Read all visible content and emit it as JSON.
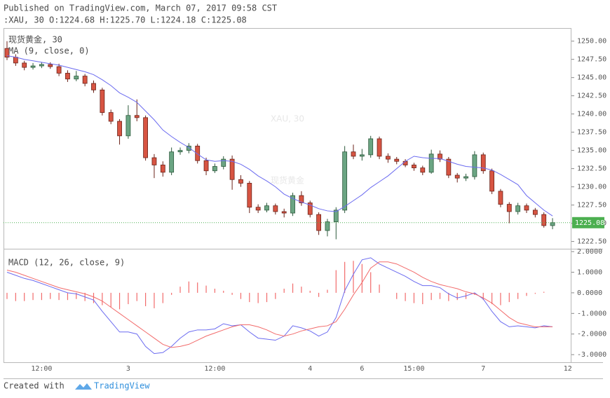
{
  "chart_data": [
    {
      "type": "candlestick",
      "title": "Published on TradingView.com, March 07, 2017 09:58 CST",
      "subtitle": ":XAU, 30 O:1224.68 H:1225.70 L:1224.18 C:1225.08",
      "symbol_label": "现货黄金, 30",
      "watermark": "XAU, 30",
      "watermark_subtitle": "现货黄金",
      "categories": [
        null,
        null,
        null,
        null,
        "12:00",
        null,
        null,
        null,
        null,
        null,
        null,
        null,
        null,
        null,
        "3",
        null,
        null,
        null,
        null,
        null,
        null,
        null,
        null,
        null,
        "12:00",
        null,
        null,
        null,
        null,
        null,
        null,
        null,
        null,
        null,
        null,
        "4",
        null,
        null,
        null,
        null,
        null,
        "6",
        null,
        null,
        null,
        null,
        null,
        "15:00",
        null,
        null,
        null,
        null,
        null,
        null,
        null,
        "7",
        null,
        null,
        null,
        null,
        null,
        null,
        null,
        null,
        null,
        "12:"
      ],
      "open": [
        1249.0,
        1247.8,
        1247.0,
        1246.4,
        1246.6,
        1246.8,
        1246.5,
        1245.6,
        1244.8,
        1245.2,
        1244.2,
        1243.3,
        1240.2,
        1239.0,
        1237.0,
        1239.8,
        1239.5,
        1234.0,
        1233.0,
        1232.0,
        1234.8,
        1235.0,
        1235.6,
        1233.6,
        1232.2,
        1232.8,
        1233.8,
        1231.0,
        1230.5,
        1227.2,
        1226.8,
        1227.4,
        1226.6,
        1226.4,
        1228.8,
        1227.8,
        1226.2,
        1224.0,
        1225.2,
        1226.8,
        1234.8,
        1234.2,
        1234.4,
        1236.6,
        1234.2,
        1233.8,
        1233.5,
        1233.0,
        1232.6,
        1232.0,
        1234.5,
        1233.8,
        1231.6,
        1231.2,
        1231.4,
        1234.4,
        1232.2,
        1229.4,
        1227.6,
        1226.6,
        1227.4,
        1226.8,
        1226.2,
        1224.68,
        null,
        null
      ],
      "high": [
        1250.0,
        1248.2,
        1247.3,
        1247.0,
        1247.1,
        1247.1,
        1246.9,
        1246.0,
        1245.9,
        1245.5,
        1244.6,
        1243.6,
        1240.6,
        1239.3,
        1241.2,
        1242.0,
        1239.8,
        1234.5,
        1233.5,
        1235.4,
        1235.4,
        1236.0,
        1235.9,
        1234.0,
        1233.2,
        1234.2,
        1234.3,
        1231.6,
        1230.8,
        1227.6,
        1227.8,
        1227.7,
        1227.0,
        1229.2,
        1229.4,
        1228.1,
        1226.5,
        1225.6,
        1227.2,
        1235.6,
        1235.8,
        1235.2,
        1237.0,
        1236.9,
        1234.6,
        1234.1,
        1233.8,
        1233.3,
        1232.9,
        1235.1,
        1235.0,
        1234.1,
        1231.9,
        1231.8,
        1234.9,
        1234.7,
        1232.5,
        1229.7,
        1227.9,
        1227.8,
        1227.7,
        1227.1,
        1226.5,
        1225.7,
        null,
        null
      ],
      "low": [
        1247.4,
        1246.6,
        1246.0,
        1246.1,
        1246.3,
        1246.2,
        1245.2,
        1244.4,
        1244.5,
        1243.8,
        1242.9,
        1239.8,
        1238.6,
        1235.8,
        1236.6,
        1239.0,
        1233.6,
        1231.2,
        1231.4,
        1231.6,
        1234.4,
        1234.6,
        1233.2,
        1231.6,
        1231.9,
        1232.4,
        1229.6,
        1230.0,
        1226.4,
        1226.4,
        1226.5,
        1226.2,
        1225.8,
        1226.0,
        1227.4,
        1225.8,
        1223.4,
        1223.2,
        1222.8,
        1226.4,
        1233.8,
        1233.6,
        1234.0,
        1233.8,
        1233.3,
        1233.1,
        1232.7,
        1232.2,
        1231.6,
        1231.8,
        1233.4,
        1231.2,
        1230.6,
        1230.8,
        1231.0,
        1231.8,
        1229.0,
        1227.2,
        1225.0,
        1226.2,
        1226.4,
        1225.8,
        1224.4,
        1224.18,
        null,
        null
      ],
      "close": [
        1247.8,
        1247.0,
        1246.4,
        1246.6,
        1246.8,
        1246.5,
        1245.6,
        1244.8,
        1245.2,
        1244.2,
        1243.3,
        1240.2,
        1239.0,
        1237.0,
        1239.8,
        1239.5,
        1234.0,
        1233.0,
        1232.0,
        1234.8,
        1235.0,
        1235.6,
        1233.6,
        1232.2,
        1232.8,
        1233.8,
        1231.0,
        1230.5,
        1227.2,
        1226.8,
        1227.4,
        1226.6,
        1226.4,
        1228.8,
        1227.8,
        1226.2,
        1224.0,
        1225.2,
        1226.8,
        1234.8,
        1234.2,
        1234.4,
        1236.6,
        1234.2,
        1233.8,
        1233.5,
        1233.0,
        1232.6,
        1232.0,
        1234.5,
        1233.8,
        1231.6,
        1231.2,
        1231.4,
        1234.4,
        1232.2,
        1229.4,
        1227.6,
        1226.6,
        1227.4,
        1226.8,
        1226.2,
        1224.68,
        1225.08,
        null,
        null
      ],
      "up_color": "#6ba583",
      "down_color": "#d75442",
      "last_price_color": "#4caf50",
      "series": [
        {
          "name": "MA (9, close, 0)",
          "color": "#6b6bf0",
          "values": [
            1248.0,
            1247.8,
            1247.5,
            1247.3,
            1247.1,
            1246.9,
            1246.7,
            1246.4,
            1246.1,
            1245.8,
            1245.4,
            1244.7,
            1243.9,
            1242.9,
            1242.3,
            1241.6,
            1240.4,
            1239.2,
            1237.8,
            1236.9,
            1236.1,
            1235.4,
            1234.5,
            1233.7,
            1233.5,
            1233.6,
            1233.5,
            1233.1,
            1232.4,
            1231.5,
            1230.8,
            1230.0,
            1229.0,
            1228.4,
            1227.9,
            1227.5,
            1227.0,
            1226.7,
            1226.6,
            1227.3,
            1228.1,
            1228.9,
            1229.9,
            1230.7,
            1231.5,
            1232.5,
            1233.5,
            1234.2,
            1234.0,
            1233.9,
            1233.9,
            1233.5,
            1233.1,
            1232.8,
            1232.7,
            1232.6,
            1232.3,
            1231.7,
            1231.0,
            1230.3,
            1228.8,
            1227.8,
            1226.8,
            1226.0,
            null,
            null
          ]
        }
      ],
      "ylim": [
        1221.5,
        1251.8
      ],
      "yticks": [
        {
          "value": 1222.5,
          "label": "1222.50"
        },
        {
          "value": 1225,
          "label": "1225.00"
        },
        {
          "value": 1227.5,
          "label": "1227.50"
        },
        {
          "value": 1230,
          "label": "1230.00"
        },
        {
          "value": 1232.5,
          "label": "1232.50"
        },
        {
          "value": 1235,
          "label": "1235.00"
        },
        {
          "value": 1237.5,
          "label": "1237.50"
        },
        {
          "value": 1240,
          "label": "1240.00"
        },
        {
          "value": 1242.5,
          "label": "1242.50"
        },
        {
          "value": 1245,
          "label": "1245.00"
        },
        {
          "value": 1247.5,
          "label": "1247.50"
        },
        {
          "value": 1250,
          "label": "1250.00"
        }
      ]
    },
    {
      "type": "macd",
      "title": "MACD (12, 26, close, 9)",
      "series": [
        {
          "color": "#6b6bf0",
          "values": [
            1.0,
            0.85,
            0.7,
            0.6,
            0.45,
            0.3,
            0.15,
            0.0,
            -0.05,
            -0.2,
            -0.35,
            -0.9,
            -1.4,
            -1.9,
            -1.9,
            -2.0,
            -2.6,
            -2.95,
            -2.9,
            -2.6,
            -2.2,
            -1.9,
            -1.8,
            -1.8,
            -1.75,
            -1.5,
            -1.6,
            -1.55,
            -1.9,
            -2.2,
            -2.25,
            -2.3,
            -2.1,
            -1.6,
            -1.7,
            -1.85,
            -2.1,
            -1.9,
            -1.2,
            0.1,
            0.9,
            1.6,
            1.7,
            1.4,
            1.2,
            1.0,
            0.8,
            0.55,
            0.35,
            0.35,
            0.25,
            -0.05,
            -0.25,
            -0.15,
            0.0,
            -0.3,
            -0.9,
            -1.4,
            -1.65,
            -1.6,
            -1.65,
            -1.7,
            -1.6,
            -1.65,
            null,
            null
          ]
        },
        {
          "color": "#f26b6b",
          "values": [
            1.1,
            1.0,
            0.85,
            0.7,
            0.55,
            0.4,
            0.25,
            0.15,
            0.05,
            -0.05,
            -0.2,
            -0.4,
            -0.7,
            -1.0,
            -1.3,
            -1.6,
            -1.9,
            -2.2,
            -2.5,
            -2.65,
            -2.6,
            -2.5,
            -2.3,
            -2.1,
            -1.95,
            -1.8,
            -1.65,
            -1.55,
            -1.55,
            -1.65,
            -1.8,
            -2.0,
            -2.1,
            -2.0,
            -1.85,
            -1.75,
            -1.65,
            -1.6,
            -1.4,
            -0.8,
            -0.1,
            0.5,
            1.2,
            1.5,
            1.5,
            1.4,
            1.2,
            1.0,
            0.75,
            0.55,
            0.4,
            0.3,
            0.2,
            0.05,
            -0.05,
            -0.25,
            -0.5,
            -0.85,
            -1.2,
            -1.45,
            -1.55,
            -1.65,
            -1.65,
            -1.65,
            null,
            null
          ]
        }
      ],
      "histogram": {
        "color": "#f26b6b",
        "values": [
          -0.3,
          -0.4,
          -0.4,
          -0.35,
          -0.35,
          -0.3,
          -0.35,
          -0.35,
          -0.3,
          -0.4,
          -0.5,
          -0.6,
          -0.7,
          -0.8,
          -0.55,
          -0.4,
          -0.65,
          -0.75,
          -0.5,
          -0.1,
          0.3,
          0.55,
          0.5,
          0.35,
          0.2,
          0.1,
          -0.1,
          -0.3,
          -0.45,
          -0.5,
          -0.45,
          -0.3,
          0.2,
          0.45,
          0.3,
          0.1,
          -0.2,
          0.15,
          1.1,
          1.5,
          1.55,
          1.4,
          1.0,
          0.4,
          0.0,
          -0.3,
          -0.4,
          -0.5,
          -0.55,
          -0.35,
          -0.3,
          -0.4,
          -0.35,
          -0.3,
          -0.1,
          -0.35,
          -0.55,
          -0.6,
          -0.45,
          -0.3,
          -0.15,
          -0.05,
          0.05,
          0.0,
          null,
          null
        ]
      },
      "ylim": [
        -3.37,
        2.07
      ],
      "yticks": [
        {
          "value": -3,
          "label": "-3.0000"
        },
        {
          "value": -2,
          "label": "-2.0000"
        },
        {
          "value": -1,
          "label": "-1.0000"
        },
        {
          "value": 0,
          "label": "0.0000"
        },
        {
          "value": 1,
          "label": "1.0000"
        },
        {
          "value": 2,
          "label": "2.0000"
        }
      ]
    }
  ],
  "footer": {
    "text": "Created with",
    "brand": "TradingView"
  }
}
